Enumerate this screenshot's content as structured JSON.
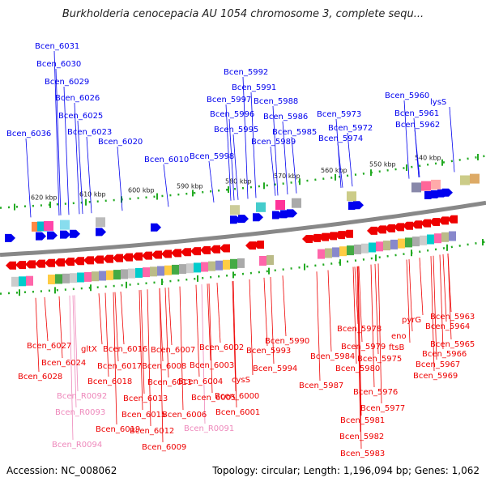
{
  "title": "Burkholderia cenocepacia AU 1054 chromosome 3, complete sequ...",
  "accession": "Accession: NC_008062",
  "summary": "Topology: circular; Length: 1,196,094 bp; Genes: 1,062",
  "colors": {
    "forward": "#0000ee",
    "reverse": "#ee0000",
    "rna": "#ee88bb",
    "backbone": "#888888",
    "tick": "#22aa22"
  },
  "kbp_labels": [
    {
      "text": "620 kbp"
    },
    {
      "text": "610 kbp"
    },
    {
      "text": "600 kbp"
    },
    {
      "text": "590 kbp"
    },
    {
      "text": "580 kbp"
    },
    {
      "text": "570 kbp"
    },
    {
      "text": "560 kbp"
    },
    {
      "text": "550 kbp"
    },
    {
      "text": "540 kbp"
    }
  ],
  "top_labels": [
    {
      "text": "Bcen_6031"
    },
    {
      "text": "Bcen_6030"
    },
    {
      "text": "Bcen_6029"
    },
    {
      "text": "Bcen_6026"
    },
    {
      "text": "Bcen_6025"
    },
    {
      "text": "Bcen_6023"
    },
    {
      "text": "Bcen_6036"
    },
    {
      "text": "Bcen_6020"
    },
    {
      "text": "Bcen_6010"
    },
    {
      "text": "Bcen_5998"
    },
    {
      "text": "Bcen_5992"
    },
    {
      "text": "Bcen_5991"
    },
    {
      "text": "Bcen_5997"
    },
    {
      "text": "Bcen_5988"
    },
    {
      "text": "Bcen_5996"
    },
    {
      "text": "Bcen_5986"
    },
    {
      "text": "Bcen_5995"
    },
    {
      "text": "Bcen_5985"
    },
    {
      "text": "Bcen_5989"
    },
    {
      "text": "Bcen_5973"
    },
    {
      "text": "Bcen_5972"
    },
    {
      "text": "Bcen_5974"
    },
    {
      "text": "Bcen_5960"
    },
    {
      "text": "lysS"
    },
    {
      "text": "Bcen_5961"
    },
    {
      "text": "Bcen_5962"
    }
  ],
  "bottom_labels": [
    {
      "text": "Bcen_6027",
      "rna": false
    },
    {
      "text": "Bcen_6024",
      "rna": false
    },
    {
      "text": "Bcen_6028",
      "rna": false
    },
    {
      "text": "gltX",
      "rna": false
    },
    {
      "text": "Bcen_6016",
      "rna": false
    },
    {
      "text": "Bcen_6017",
      "rna": false
    },
    {
      "text": "Bcen_6018",
      "rna": false
    },
    {
      "text": "Bcen_R0092",
      "rna": true
    },
    {
      "text": "Bcen_R0093",
      "rna": true
    },
    {
      "text": "Bcen_6019",
      "rna": false
    },
    {
      "text": "Bcen_R0094",
      "rna": true
    },
    {
      "text": "Bcen_6013",
      "rna": false
    },
    {
      "text": "Bcen_6015",
      "rna": false
    },
    {
      "text": "Bcen_6012",
      "rna": false
    },
    {
      "text": "Bcen_6009",
      "rna": false
    },
    {
      "text": "Bcen_6011",
      "rna": false
    },
    {
      "text": "Bcen_6008",
      "rna": false
    },
    {
      "text": "Bcen_6007",
      "rna": false
    },
    {
      "text": "Bcen_6005",
      "rna": false
    },
    {
      "text": "Bcen_6006",
      "rna": false
    },
    {
      "text": "Bcen_R0091",
      "rna": true
    },
    {
      "text": "Bcen_6004",
      "rna": false
    },
    {
      "text": "Bcen_6003",
      "rna": false
    },
    {
      "text": "Bcen_6002",
      "rna": false
    },
    {
      "text": "cysS",
      "rna": false
    },
    {
      "text": "Bcen_6000",
      "rna": false
    },
    {
      "text": "Bcen_6001",
      "rna": false
    },
    {
      "text": "Bcen_5993",
      "rna": false
    },
    {
      "text": "Bcen_5994",
      "rna": false
    },
    {
      "text": "Bcen_5990",
      "rna": false
    },
    {
      "text": "Bcen_5987",
      "rna": false
    },
    {
      "text": "Bcen_5984",
      "rna": false
    },
    {
      "text": "Bcen_5978",
      "rna": false
    },
    {
      "text": "Bcen_5979",
      "rna": false
    },
    {
      "text": "Bcen_5980",
      "rna": false
    },
    {
      "text": "Bcen_5975",
      "rna": false
    },
    {
      "text": "Bcen_5976",
      "rna": false
    },
    {
      "text": "Bcen_5977",
      "rna": false
    },
    {
      "text": "Bcen_5981",
      "rna": false
    },
    {
      "text": "Bcen_5982",
      "rna": false
    },
    {
      "text": "Bcen_5983",
      "rna": false
    },
    {
      "text": "eno",
      "rna": false
    },
    {
      "text": "ftsB",
      "rna": false
    },
    {
      "text": "pyrG",
      "rna": false
    },
    {
      "text": "Bcen_5963",
      "rna": false
    },
    {
      "text": "Bcen_5964",
      "rna": false
    },
    {
      "text": "Bcen_5965",
      "rna": false
    },
    {
      "text": "Bcen_5966",
      "rna": false
    },
    {
      "text": "Bcen_5967",
      "rna": false
    },
    {
      "text": "Bcen_5969",
      "rna": false
    }
  ]
}
